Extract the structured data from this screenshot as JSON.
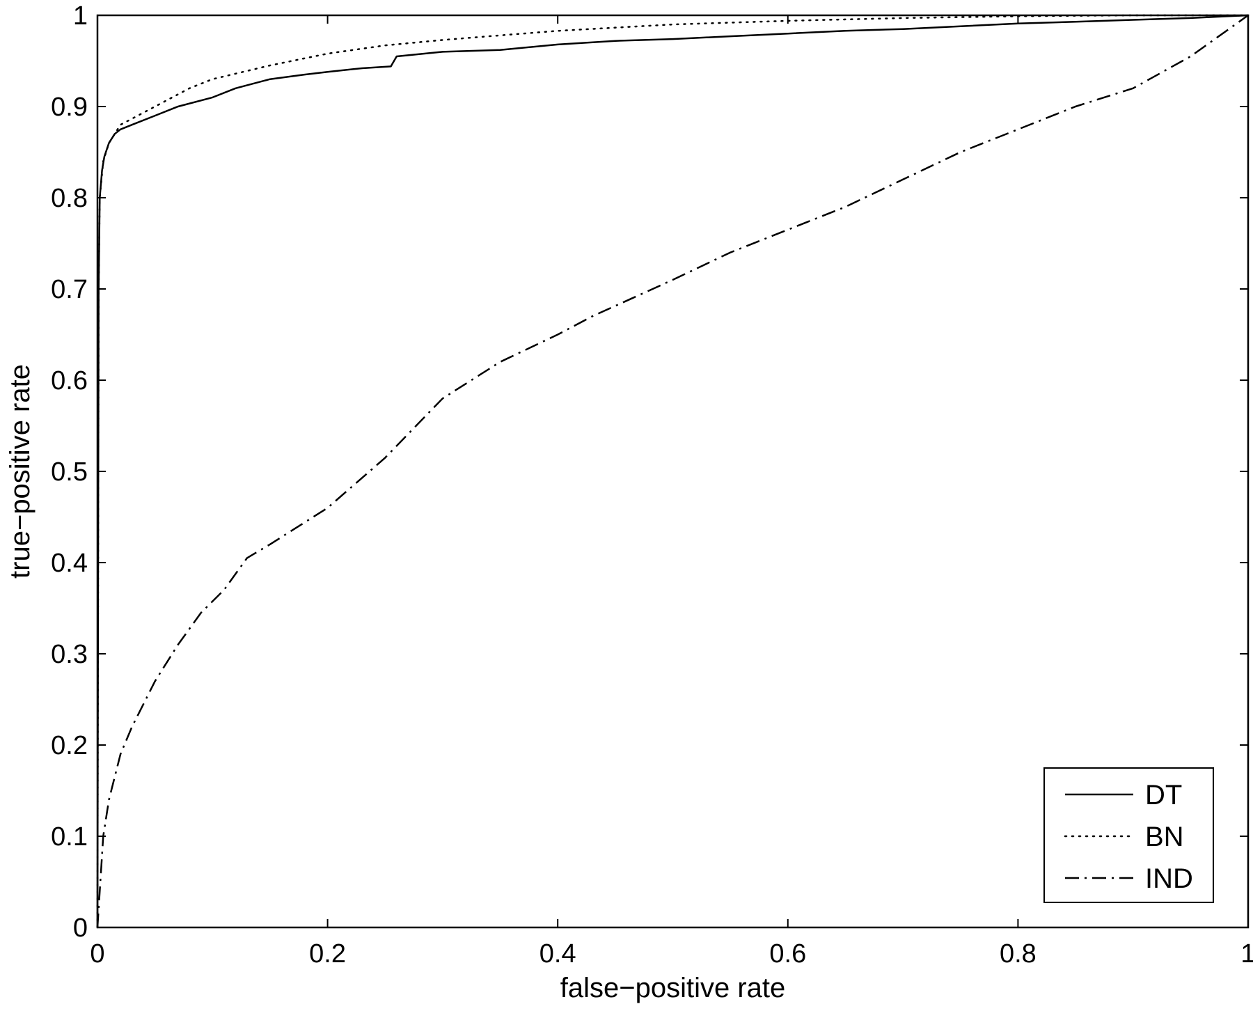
{
  "chart_data": {
    "type": "line",
    "title": "",
    "xlabel": "false−positive rate",
    "ylabel": "true−positive rate",
    "xlim": [
      0,
      1
    ],
    "ylim": [
      0,
      1
    ],
    "xticks": [
      0,
      0.2,
      0.4,
      0.6,
      0.8,
      1
    ],
    "xtick_labels": [
      "0",
      "0.2",
      "0.4",
      "0.6",
      "0.8",
      "1"
    ],
    "yticks": [
      0,
      0.1,
      0.2,
      0.3,
      0.4,
      0.5,
      0.6,
      0.7,
      0.8,
      0.9,
      1
    ],
    "ytick_labels": [
      "0",
      "0.1",
      "0.2",
      "0.3",
      "0.4",
      "0.5",
      "0.6",
      "0.7",
      "0.8",
      "0.9",
      "1"
    ],
    "grid": false,
    "legend_position": "bottom-right",
    "series": [
      {
        "name": "DT",
        "style": "solid",
        "color": "#000000",
        "x": [
          0,
          0.001,
          0.002,
          0.004,
          0.006,
          0.01,
          0.015,
          0.02,
          0.03,
          0.05,
          0.07,
          0.1,
          0.12,
          0.15,
          0.18,
          0.2,
          0.23,
          0.255,
          0.26,
          0.3,
          0.35,
          0.4,
          0.45,
          0.5,
          0.55,
          0.6,
          0.65,
          0.7,
          0.75,
          0.8,
          0.85,
          0.9,
          0.95,
          1.0
        ],
        "y": [
          0,
          0.7,
          0.8,
          0.83,
          0.845,
          0.86,
          0.87,
          0.875,
          0.88,
          0.89,
          0.9,
          0.91,
          0.92,
          0.93,
          0.935,
          0.938,
          0.942,
          0.944,
          0.955,
          0.96,
          0.962,
          0.968,
          0.972,
          0.974,
          0.977,
          0.98,
          0.983,
          0.985,
          0.988,
          0.991,
          0.993,
          0.995,
          0.997,
          1.0
        ]
      },
      {
        "name": "BN",
        "style": "dotted",
        "color": "#000000",
        "x": [
          0,
          0.001,
          0.002,
          0.005,
          0.01,
          0.02,
          0.05,
          0.08,
          0.1,
          0.15,
          0.2,
          0.25,
          0.3,
          0.35,
          0.4,
          0.5,
          0.6,
          0.7,
          0.8,
          0.9,
          1.0
        ],
        "y": [
          0,
          0.7,
          0.8,
          0.84,
          0.86,
          0.88,
          0.9,
          0.92,
          0.93,
          0.945,
          0.958,
          0.967,
          0.973,
          0.978,
          0.983,
          0.99,
          0.994,
          0.997,
          0.999,
          1.0,
          1.0
        ]
      },
      {
        "name": "IND",
        "style": "dashdot",
        "color": "#000000",
        "x": [
          0,
          0.005,
          0.01,
          0.02,
          0.03,
          0.05,
          0.07,
          0.09,
          0.11,
          0.13,
          0.15,
          0.2,
          0.25,
          0.3,
          0.35,
          0.4,
          0.43,
          0.5,
          0.55,
          0.6,
          0.65,
          0.7,
          0.75,
          0.8,
          0.85,
          0.9,
          0.95,
          1.0
        ],
        "y": [
          0,
          0.1,
          0.14,
          0.19,
          0.22,
          0.27,
          0.31,
          0.345,
          0.37,
          0.405,
          0.42,
          0.46,
          0.515,
          0.58,
          0.62,
          0.65,
          0.67,
          0.71,
          0.74,
          0.765,
          0.79,
          0.82,
          0.85,
          0.875,
          0.9,
          0.92,
          0.955,
          1.0
        ]
      }
    ]
  }
}
